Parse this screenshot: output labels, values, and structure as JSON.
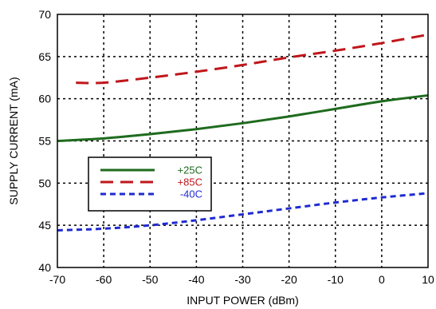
{
  "chart_data": {
    "type": "line",
    "title": "",
    "xlabel": "INPUT POWER (dBm)",
    "ylabel": "SUPPLY CURRENT (mA)",
    "xlim": [
      -70,
      10
    ],
    "ylim": [
      40,
      70
    ],
    "xticks": [
      -70,
      -60,
      -50,
      -40,
      -30,
      -20,
      -10,
      0,
      10
    ],
    "yticks": [
      40,
      45,
      50,
      55,
      60,
      65,
      70
    ],
    "xtick_labels": [
      "-70",
      "-60",
      "-50",
      "-40",
      "-30",
      "-20",
      "-10",
      "0",
      "10"
    ],
    "ytick_labels": [
      "40",
      "45",
      "50",
      "55",
      "60",
      "65",
      "70"
    ],
    "grid": true,
    "legend_position": "center-left",
    "series": [
      {
        "name": "+25C",
        "color": "#1e6b1e",
        "style": "solid",
        "x": [
          -70,
          -60,
          -50,
          -40,
          -30,
          -20,
          -10,
          0,
          10
        ],
        "y": [
          55.0,
          55.3,
          55.8,
          56.4,
          57.1,
          57.9,
          58.8,
          59.7,
          60.4
        ]
      },
      {
        "name": "+85C",
        "color": "#c0161b",
        "style": "long-dash",
        "x": [
          -66,
          -60,
          -50,
          -40,
          -30,
          -20,
          -10,
          0,
          10
        ],
        "y": [
          61.9,
          61.9,
          62.5,
          63.2,
          64.0,
          64.9,
          65.7,
          66.6,
          67.6
        ]
      },
      {
        "name": "-40C",
        "color": "#1f2bd1",
        "style": "short-dash",
        "x": [
          -70,
          -60,
          -50,
          -40,
          -30,
          -20,
          -10,
          0,
          10
        ],
        "y": [
          44.4,
          44.6,
          45.0,
          45.6,
          46.3,
          47.0,
          47.7,
          48.3,
          48.8
        ]
      }
    ]
  }
}
